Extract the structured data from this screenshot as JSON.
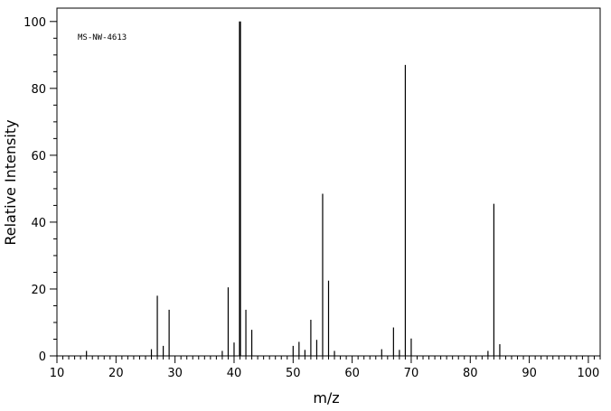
{
  "chart_data": {
    "type": "bar",
    "annotation": "MS-NW-4613",
    "xlabel": "m/z",
    "ylabel": "Relative Intensity",
    "xlim": [
      10,
      102
    ],
    "ylim": [
      0,
      104
    ],
    "x_ticks": [
      10,
      20,
      30,
      40,
      50,
      60,
      70,
      80,
      90,
      100
    ],
    "y_ticks": [
      0,
      20,
      40,
      60,
      80,
      100
    ],
    "grid": false,
    "peaks": [
      {
        "mz": 15,
        "intensity": 1.5
      },
      {
        "mz": 26,
        "intensity": 2.0
      },
      {
        "mz": 27,
        "intensity": 18.0
      },
      {
        "mz": 28,
        "intensity": 3.0
      },
      {
        "mz": 29,
        "intensity": 13.8
      },
      {
        "mz": 38,
        "intensity": 1.5
      },
      {
        "mz": 39,
        "intensity": 20.5
      },
      {
        "mz": 40,
        "intensity": 4.0
      },
      {
        "mz": 41,
        "intensity": 100
      },
      {
        "mz": 42,
        "intensity": 13.8
      },
      {
        "mz": 43,
        "intensity": 7.8
      },
      {
        "mz": 50,
        "intensity": 3.0
      },
      {
        "mz": 51,
        "intensity": 4.2
      },
      {
        "mz": 52,
        "intensity": 1.8
      },
      {
        "mz": 53,
        "intensity": 10.8
      },
      {
        "mz": 54,
        "intensity": 4.8
      },
      {
        "mz": 55,
        "intensity": 48.5
      },
      {
        "mz": 56,
        "intensity": 22.5
      },
      {
        "mz": 57,
        "intensity": 1.5
      },
      {
        "mz": 65,
        "intensity": 2.0
      },
      {
        "mz": 67,
        "intensity": 8.5
      },
      {
        "mz": 68,
        "intensity": 1.8
      },
      {
        "mz": 69,
        "intensity": 87.0
      },
      {
        "mz": 70,
        "intensity": 5.2
      },
      {
        "mz": 83,
        "intensity": 1.5
      },
      {
        "mz": 84,
        "intensity": 45.5
      },
      {
        "mz": 85,
        "intensity": 3.5
      }
    ]
  }
}
